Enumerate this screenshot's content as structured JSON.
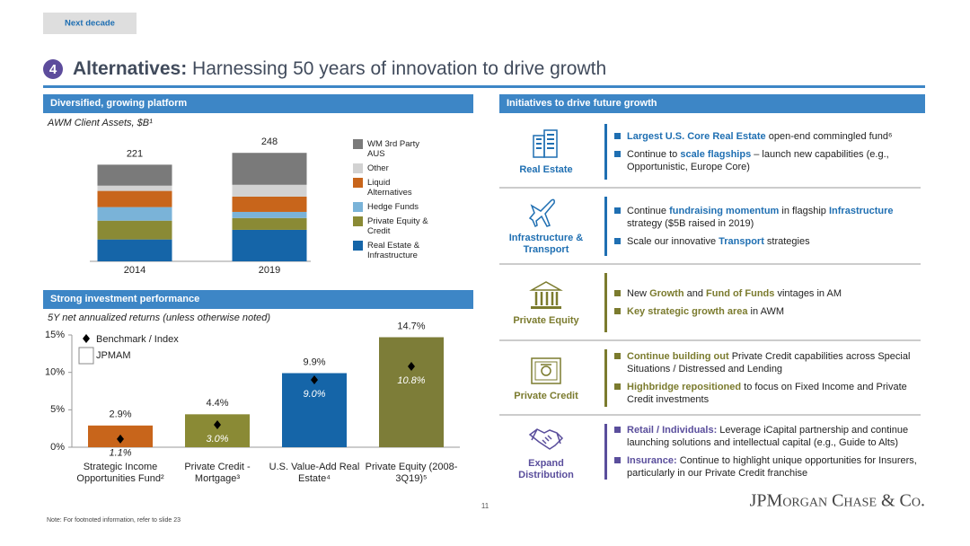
{
  "header": {
    "tab": "Next decade",
    "number": "4",
    "title_bold": "Alternatives:",
    "title_rest": " Harnessing 50 years of innovation to drive growth"
  },
  "left": {
    "section1": "Diversified, growing platform",
    "section2": "Strong investment performance"
  },
  "chart_data": [
    {
      "type": "stacked_bar",
      "subtitle": "AWM Client Assets, $B¹",
      "categories": [
        "2014",
        "2019"
      ],
      "totals": [
        221,
        248
      ],
      "series": [
        {
          "name": "Real Estate & Infrastructure",
          "color": "#1565a8",
          "values": [
            50,
            72
          ]
        },
        {
          "name": "Private Equity & Credit",
          "color": "#8a8a35",
          "values": [
            43,
            27
          ]
        },
        {
          "name": "Hedge Funds",
          "color": "#7ab3d8",
          "values": [
            31,
            14
          ]
        },
        {
          "name": "Liquid Alternatives",
          "color": "#c8651b",
          "values": [
            37,
            35
          ]
        },
        {
          "name": "Other",
          "color": "#d2d2d2",
          "values": [
            12,
            27
          ]
        },
        {
          "name": "WM 3rd Party AUS",
          "color": "#7a7a7a",
          "values": [
            48,
            73
          ]
        }
      ]
    },
    {
      "type": "bar",
      "subtitle": "5Y net annualized returns (unless otherwise noted)",
      "categories": [
        "Strategic Income Opportunities Fund²",
        "Private Credit - Mortgage³",
        "U.S. Value-Add Real Estate⁴",
        "Private Equity (2008-3Q19)⁵"
      ],
      "ylim": [
        0,
        15
      ],
      "yticks": [
        {
          "value": 0,
          "label": "0%"
        },
        {
          "value": 5,
          "label": "5%"
        },
        {
          "value": 10,
          "label": "10%"
        },
        {
          "value": 15,
          "label": "15%"
        }
      ],
      "series": [
        {
          "name": "JPMAM",
          "colors": [
            "#c8651b",
            "#8a8a35",
            "#1565a8",
            "#7d7d38"
          ],
          "values": [
            2.9,
            4.4,
            9.9,
            14.7
          ],
          "value_labels": [
            "2.9%",
            "4.4%",
            "9.9%",
            "14.7%"
          ]
        },
        {
          "name": "Benchmark / Index",
          "color": "#000000",
          "values": [
            1.1,
            3.0,
            9.0,
            10.8
          ],
          "value_labels": [
            "1.1%",
            "3.0%",
            "9.0%",
            "10.8%"
          ]
        }
      ]
    }
  ],
  "right": {
    "section": "Initiatives to drive future growth",
    "items": [
      {
        "label": "Real Estate",
        "color": "#1f6fb2",
        "bullets": [
          [
            "Largest U.S. Core Real Estate",
            " open-end commingled fund⁶"
          ],
          [
            "Continue to ",
            "scale flagships",
            " – launch new capabilities (e.g., Opportunistic, Europe Core)"
          ]
        ]
      },
      {
        "label": "Infrastructure & Transport",
        "color": "#1f6fb2",
        "bullets": [
          [
            "Continue ",
            "fundraising momentum",
            " in flagship ",
            "Infrastructure",
            " strategy ($5B raised in 2019)"
          ],
          [
            "Scale our innovative ",
            "Transport",
            " strategies"
          ]
        ]
      },
      {
        "label": "Private Equity",
        "color": "#7b7b2e",
        "bullets": [
          [
            "New ",
            "Growth",
            " and ",
            "Fund of Funds",
            " vintages in AM"
          ],
          [
            "Key strategic growth area",
            " in AWM"
          ]
        ]
      },
      {
        "label": "Private Credit",
        "color": "#7b7b2e",
        "bullets": [
          [
            "Continue building out",
            " Private Credit capabilities across Special Situations / Distressed and Lending"
          ],
          [
            "Highbridge repositioned",
            " to focus on Fixed Income and Private Credit investments"
          ]
        ]
      },
      {
        "label": "Expand Distribution",
        "color": "#5a4e9c",
        "bullets": [
          [
            "Retail / Individuals:",
            " Leverage iCapital partnership and continue launching solutions and intellectual capital (e.g., Guide to Alts)"
          ],
          [
            "Insurance:",
            " Continue to highlight unique opportunities for Insurers, particularly in our Private Credit franchise"
          ]
        ]
      }
    ]
  },
  "footer": {
    "page": "11",
    "logo": "JPMorgan Chase & Co.",
    "note": "Note: For footnoted information, refer to slide 23"
  }
}
